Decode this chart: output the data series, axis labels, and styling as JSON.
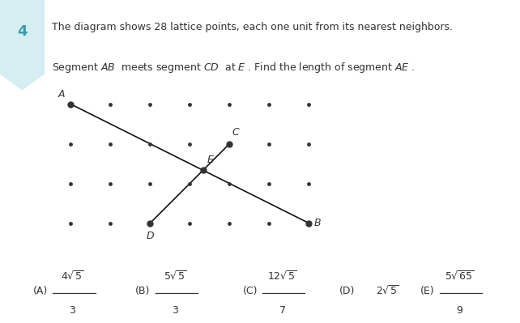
{
  "background_color": "#ffffff",
  "problem_number": "4",
  "badge_bg": "#d6eef2",
  "badge_text_color": "#3a9aaa",
  "title_line1": "The diagram shows 28 lattice points, each one unit from its nearest neighbors.",
  "title_line2": "Segment $AB$  meets segment $CD$  at $E$ . Find the length of segment $AE$ .",
  "grid_cols": 7,
  "grid_rows": 4,
  "point_A": [
    0,
    3
  ],
  "point_B": [
    6,
    0
  ],
  "point_C": [
    4,
    2
  ],
  "point_D": [
    2,
    0
  ],
  "dot_color": "#333333",
  "dot_size": 3.5,
  "special_dot_size": 6,
  "line_color": "#111111",
  "line_width": 1.2,
  "label_fontsize": 9,
  "title_fontsize": 9,
  "ans_fontsize": 9
}
